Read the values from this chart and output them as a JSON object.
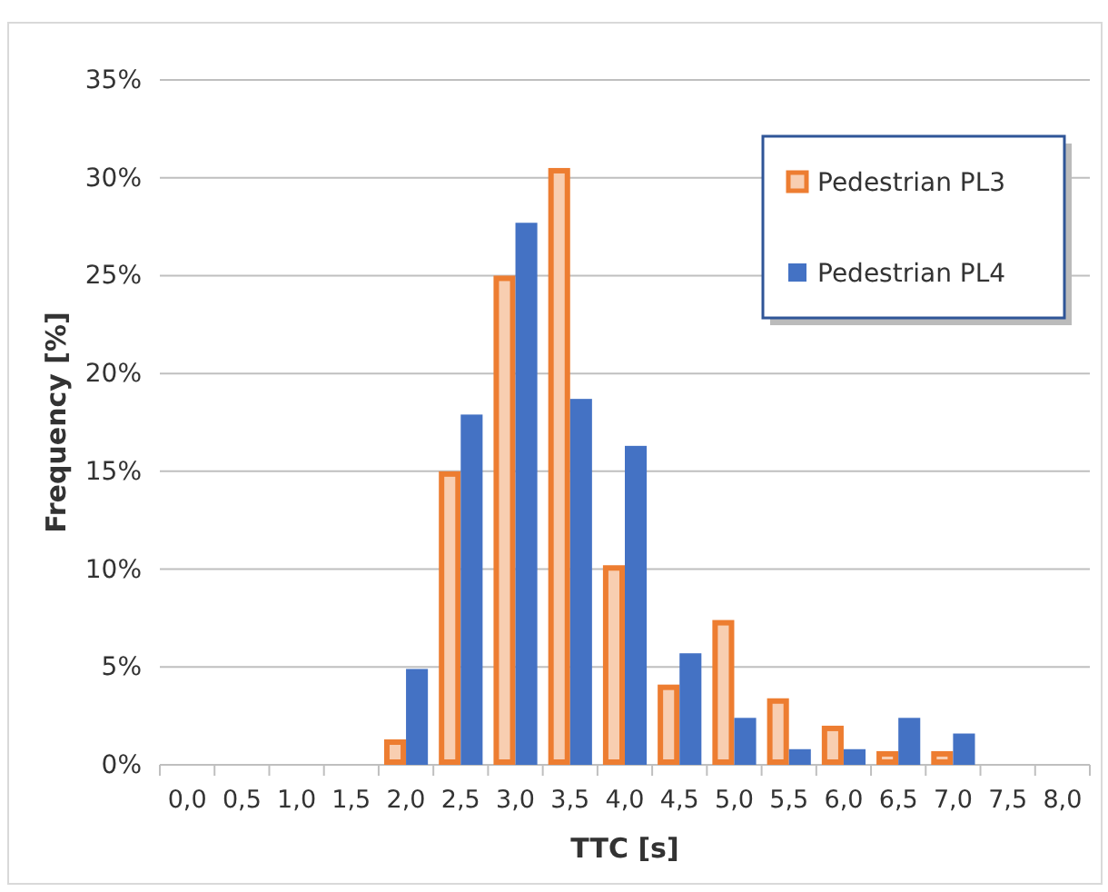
{
  "chart_data": {
    "type": "bar",
    "xlabel": "TTC [s]",
    "ylabel": "Frequency [%]",
    "categories": [
      "0,0",
      "0,5",
      "1,0",
      "1,5",
      "2,0",
      "2,5",
      "3,0",
      "3,5",
      "4,0",
      "4,5",
      "5,0",
      "5,5",
      "6,0",
      "6,5",
      "7,0",
      "7,5",
      "8,0"
    ],
    "series": [
      {
        "name": "Pedestrian PL3",
        "color": "#ed7d31",
        "values": [
          null,
          null,
          null,
          null,
          1.3,
          15,
          25,
          30.5,
          10.2,
          4.1,
          7.4,
          3.4,
          2.0,
          0.7,
          0.7,
          null,
          null
        ]
      },
      {
        "name": "Pedestrian PL4",
        "color": "#4472c4",
        "values": [
          null,
          null,
          null,
          null,
          4.9,
          17.9,
          27.7,
          18.7,
          16.3,
          5.7,
          2.4,
          0.8,
          0.8,
          2.4,
          1.6,
          null,
          null
        ]
      }
    ],
    "ylim": [
      0,
      35
    ],
    "yticks": [
      {
        "value": 0,
        "label": "0%"
      },
      {
        "value": 5,
        "label": "5%"
      },
      {
        "value": 10,
        "label": "10%"
      },
      {
        "value": 15,
        "label": "15%"
      },
      {
        "value": 20,
        "label": "20%"
      },
      {
        "value": 25,
        "label": "25%"
      },
      {
        "value": 30,
        "label": "30%"
      },
      {
        "value": 35,
        "label": "35%"
      }
    ],
    "grid": "y",
    "legend": "top right"
  }
}
